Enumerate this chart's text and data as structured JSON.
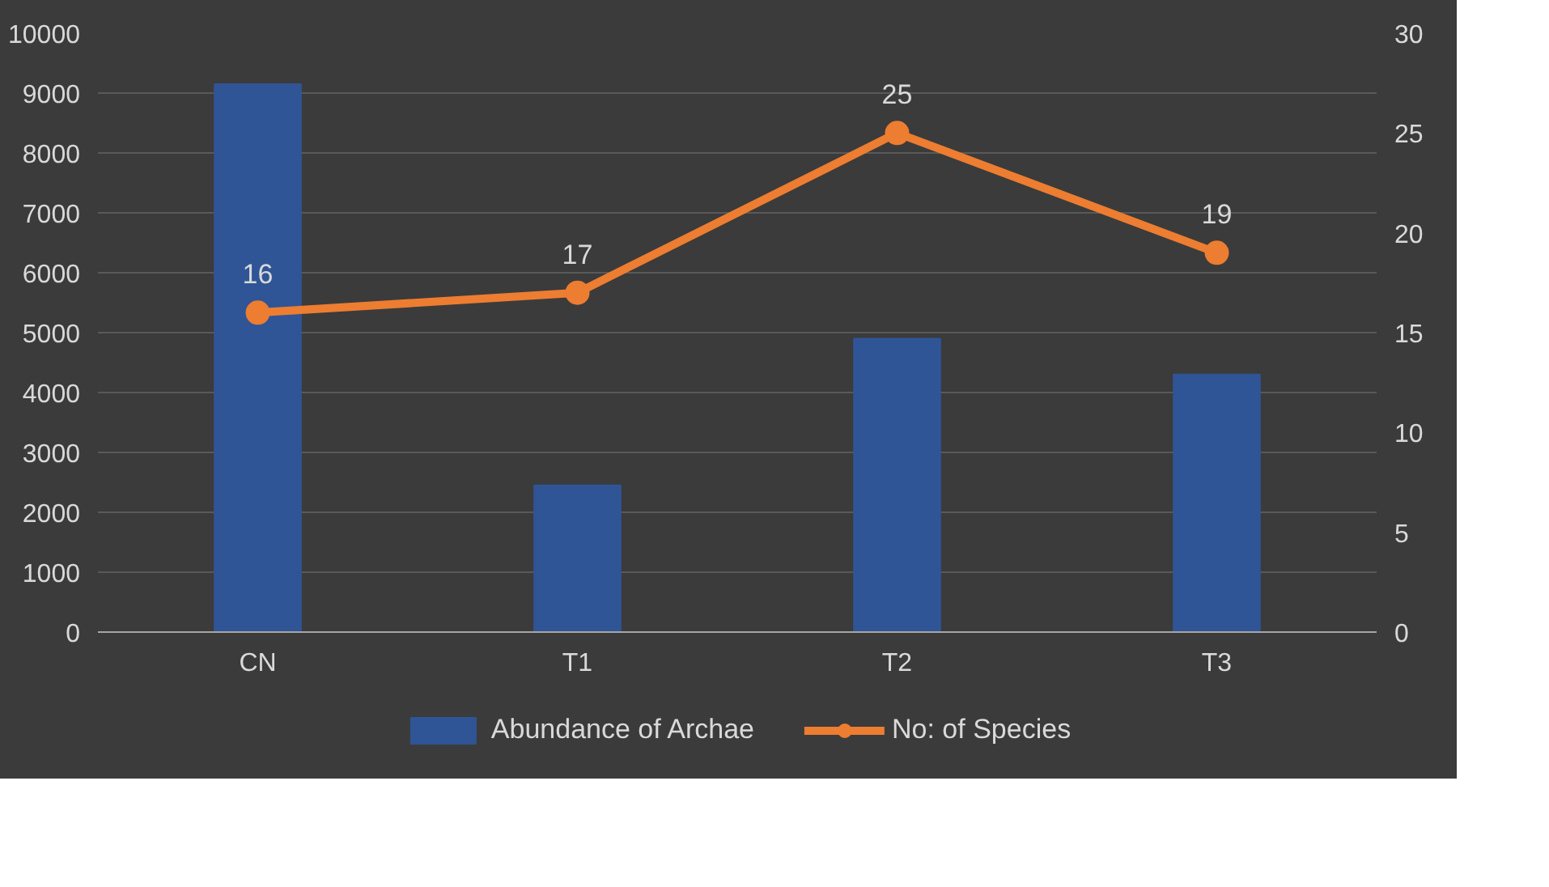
{
  "chart_data": {
    "type": "bar",
    "categories": [
      "CN",
      "T1",
      "T2",
      "T3"
    ],
    "series": [
      {
        "name": "Abundance of Archae",
        "color": "#2f5597",
        "values": [
          9150,
          2450,
          4900,
          4300
        ]
      },
      {
        "name": "No: of Species",
        "type": "line",
        "axis": "y2",
        "color": "#ed7d31",
        "values": [
          16,
          17,
          25,
          19
        ],
        "value_labels": [
          "16",
          "17",
          "25",
          "19"
        ]
      }
    ],
    "ylim": [
      0,
      10000
    ],
    "yticks": [
      0,
      1000,
      2000,
      3000,
      4000,
      5000,
      6000,
      7000,
      8000,
      9000,
      10000
    ],
    "y2lim": [
      0,
      30
    ],
    "y2ticks": [
      0,
      5,
      10,
      15,
      20,
      25,
      30
    ],
    "grid": "y",
    "legend": "bottom",
    "marker": "circle",
    "line_style": "solid"
  }
}
